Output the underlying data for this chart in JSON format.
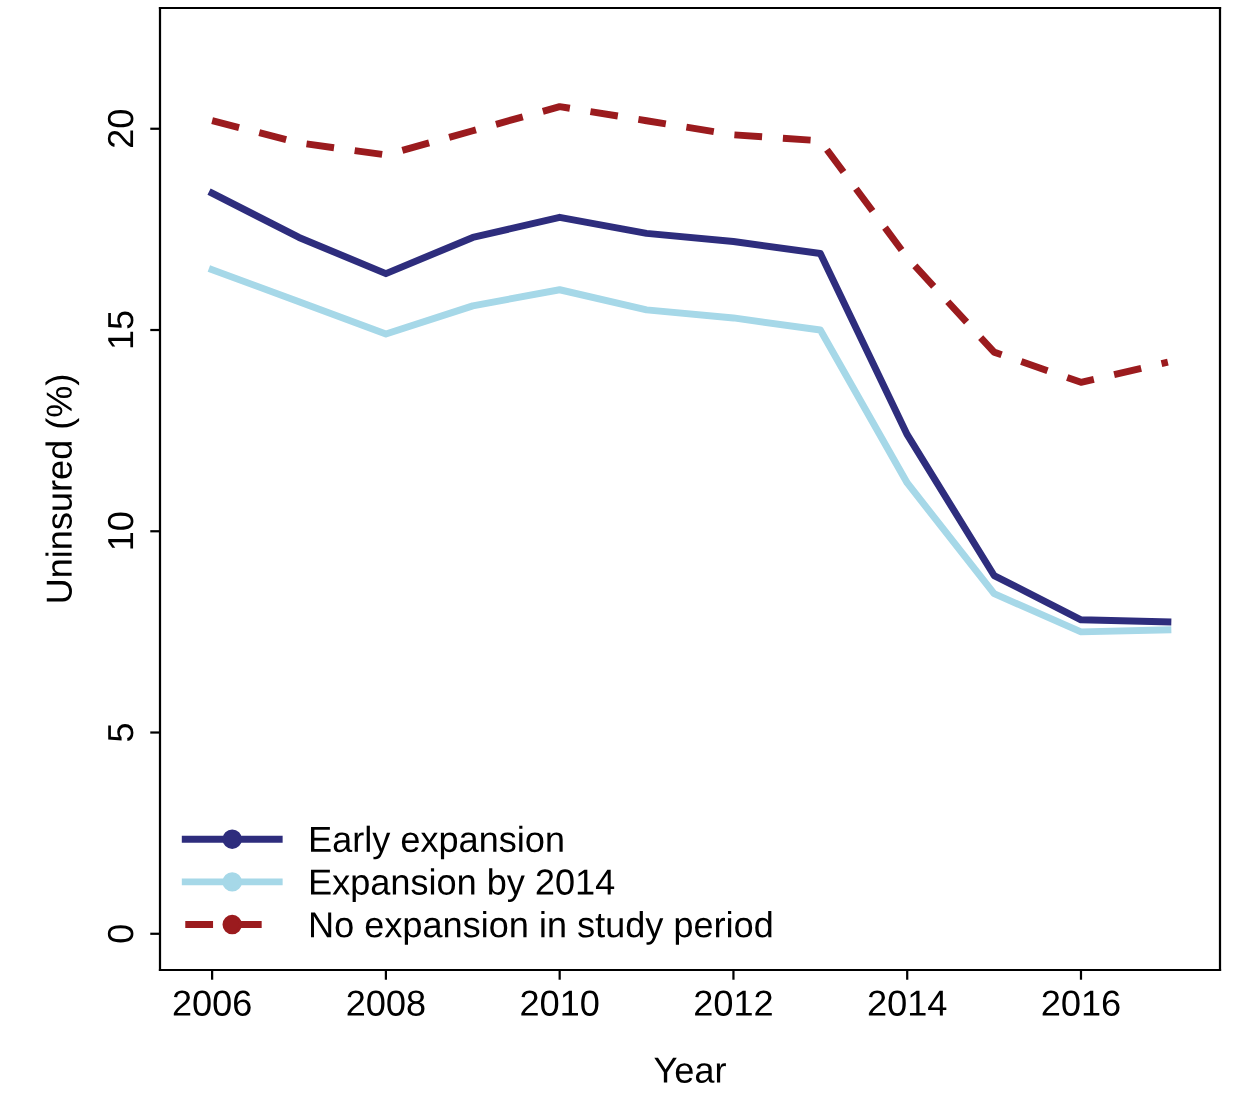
{
  "chart_data": {
    "type": "line",
    "xlabel": "Year",
    "ylabel": "Uninsured (%)",
    "x": [
      2006,
      2007,
      2008,
      2009,
      2010,
      2011,
      2012,
      2013,
      2014,
      2015,
      2016,
      2017
    ],
    "xlim": [
      2005.4,
      2017.6
    ],
    "ylim": [
      -0.9,
      23
    ],
    "xticks": [
      2006,
      2008,
      2010,
      2012,
      2014,
      2016
    ],
    "yticks": [
      0,
      5,
      10,
      15,
      20
    ],
    "grid": false,
    "legend": "bottom left",
    "marker": "none",
    "series": [
      {
        "name": "Early expansion",
        "color": "#2e2d7d",
        "line_style": "solid",
        "values": [
          18.4,
          17.3,
          16.4,
          17.3,
          17.8,
          17.4,
          17.2,
          16.9,
          12.4,
          8.9,
          7.8,
          7.75
        ]
      },
      {
        "name": "Expansion by 2014",
        "color": "#a6d8e8",
        "line_style": "solid",
        "values": [
          16.5,
          15.7,
          14.9,
          15.6,
          16.0,
          15.5,
          15.3,
          15.0,
          11.2,
          8.45,
          7.5,
          7.55
        ]
      },
      {
        "name": "No expansion in study period",
        "color": "#9b1b1e",
        "line_style": "dashed",
        "values": [
          20.2,
          19.65,
          19.35,
          19.95,
          20.55,
          20.2,
          19.85,
          19.7,
          16.8,
          14.45,
          13.7,
          14.2
        ]
      }
    ]
  }
}
